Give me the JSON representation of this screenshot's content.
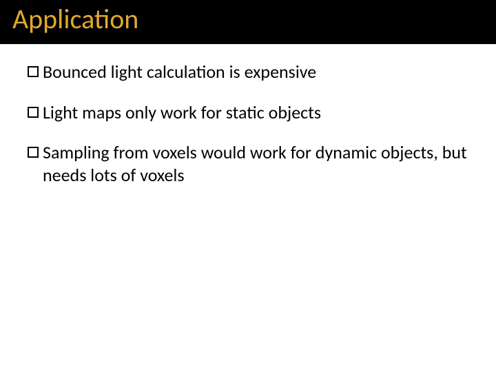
{
  "slide": {
    "title": "Application",
    "title_color": "#e0a92f",
    "title_bg": "#000000",
    "title_fontsize": 40,
    "body_fontsize": 26,
    "body_color": "#000000",
    "bullet_border_color": "#000000",
    "background": "#ffffff",
    "bullets": [
      {
        "text": "Bounced light calculation is expensive"
      },
      {
        "text": "Light maps only work for static objects"
      },
      {
        "text": "Sampling from voxels  would work for dynamic objects, but needs lots of voxels"
      }
    ]
  }
}
